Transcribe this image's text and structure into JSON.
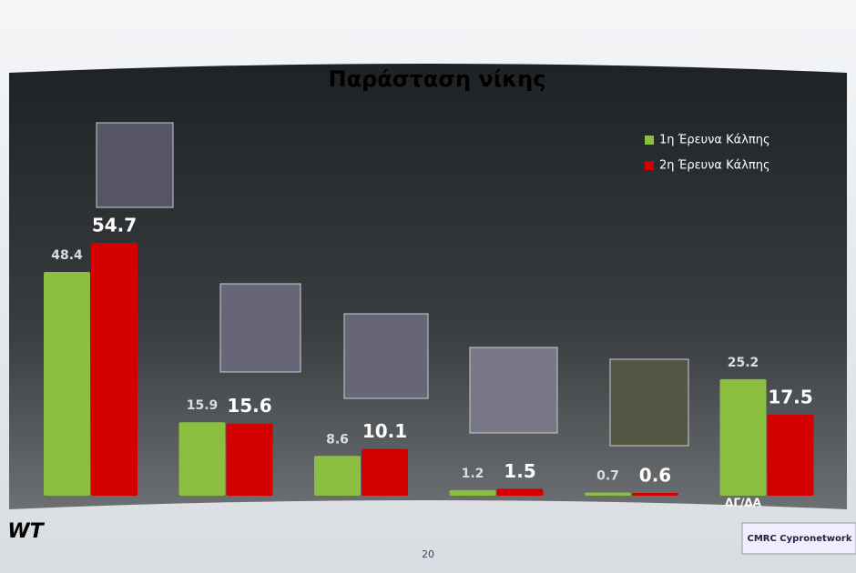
{
  "chart_data": {
    "type": "bar",
    "title": "Παράσταση νίκης",
    "categories": [
      null,
      null,
      null,
      null,
      null,
      "ΔΓ/ΔΑ"
    ],
    "series": [
      {
        "name": "1η Έρευνα Κάλπης",
        "color": "#8cbf3f",
        "values": [
          48.4,
          15.9,
          8.6,
          1.2,
          0.7,
          25.2
        ]
      },
      {
        "name": "2η Έρευνα Κάλπης",
        "color": "#d40000",
        "values": [
          54.7,
          15.6,
          10.1,
          1.5,
          0.6,
          17.5
        ]
      }
    ],
    "legend": "top-right"
  },
  "footer": {
    "page_number": "20",
    "logo_left": "WT",
    "logo_right": "CMRC Cypronetwork"
  }
}
